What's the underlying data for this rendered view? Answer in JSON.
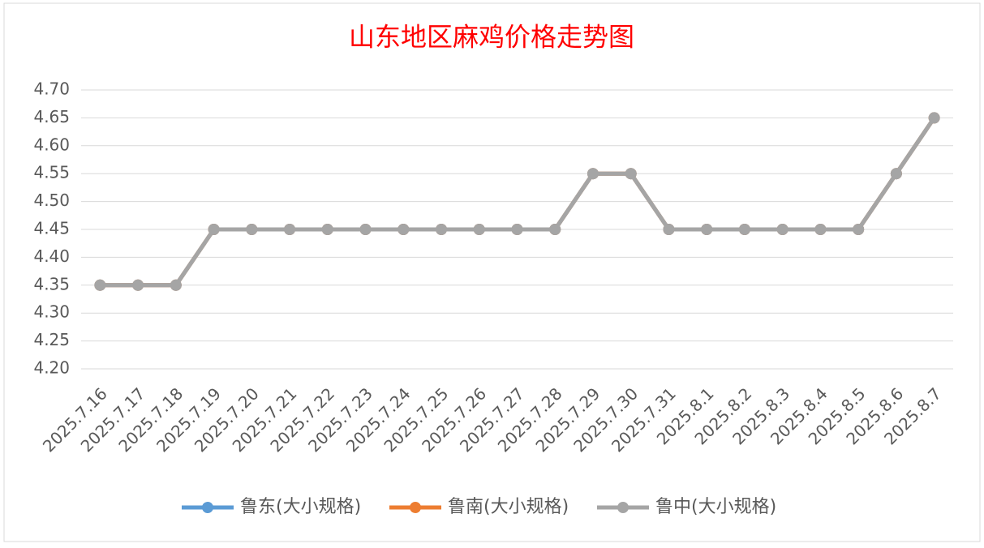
{
  "chart_data": {
    "type": "line",
    "title": "山东地区麻鸡价格走势图",
    "categories": [
      "2025.7.16",
      "2025.7.17",
      "2025.7.18",
      "2025.7.19",
      "2025.7.20",
      "2025.7.21",
      "2025.7.22",
      "2025.7.23",
      "2025.7.24",
      "2025.7.25",
      "2025.7.26",
      "2025.7.27",
      "2025.7.28",
      "2025.7.29",
      "2025.7.30",
      "2025.7.31",
      "2025.8.1",
      "2025.8.2",
      "2025.8.3",
      "2025.8.4",
      "2025.8.5",
      "2025.8.6",
      "2025.8.7"
    ],
    "series": [
      {
        "name": "鲁东(大小规格)",
        "color": "#5b9bd5",
        "values": [
          4.35,
          4.35,
          4.35,
          4.45,
          4.45,
          4.45,
          4.45,
          4.45,
          4.45,
          4.45,
          4.45,
          4.45,
          4.45,
          4.55,
          4.55,
          4.45,
          4.45,
          4.45,
          4.45,
          4.45,
          4.45,
          4.55,
          4.65
        ]
      },
      {
        "name": "鲁南(大小规格)",
        "color": "#ed7d31",
        "values": [
          4.35,
          4.35,
          4.35,
          4.45,
          4.45,
          4.45,
          4.45,
          4.45,
          4.45,
          4.45,
          4.45,
          4.45,
          4.45,
          4.55,
          4.55,
          4.45,
          4.45,
          4.45,
          4.45,
          4.45,
          4.45,
          4.55,
          4.65
        ]
      },
      {
        "name": "鲁中(大小规格)",
        "color": "#a5a5a5",
        "values": [
          4.35,
          4.35,
          4.35,
          4.45,
          4.45,
          4.45,
          4.45,
          4.45,
          4.45,
          4.45,
          4.45,
          4.45,
          4.45,
          4.55,
          4.55,
          4.45,
          4.45,
          4.45,
          4.45,
          4.45,
          4.45,
          4.55,
          4.65
        ]
      }
    ],
    "ylim": [
      4.2,
      4.7
    ],
    "yticks": [
      {
        "value": 4.2,
        "label": "4.20"
      },
      {
        "value": 4.25,
        "label": "4.25"
      },
      {
        "value": 4.3,
        "label": "4.30"
      },
      {
        "value": 4.35,
        "label": "4.35"
      },
      {
        "value": 4.4,
        "label": "4.40"
      },
      {
        "value": 4.45,
        "label": "4.45"
      },
      {
        "value": 4.5,
        "label": "4.50"
      },
      {
        "value": 4.55,
        "label": "4.55"
      },
      {
        "value": 4.6,
        "label": "4.60"
      },
      {
        "value": 4.65,
        "label": "4.65"
      },
      {
        "value": 4.7,
        "label": "4.70"
      }
    ],
    "grid": true,
    "legend": "bottom"
  }
}
